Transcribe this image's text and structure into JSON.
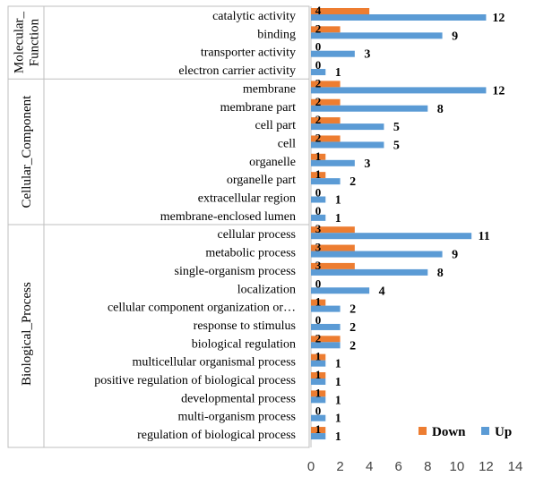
{
  "chart_data": {
    "type": "bar",
    "orientation": "horizontal",
    "xlim": [
      0,
      14
    ],
    "x_ticks": [
      "0",
      "2",
      "4",
      "6",
      "8",
      "10",
      "12",
      "14"
    ],
    "grid": false,
    "legend_position": "bottom-right",
    "series": [
      {
        "name": "Down",
        "color": "#ED7D31"
      },
      {
        "name": "Up",
        "color": "#5B9BD5"
      }
    ],
    "groups": [
      {
        "label_lines": [
          "Molecular_",
          "Function"
        ],
        "categories": [
          {
            "label": "catalytic activity",
            "down": 4,
            "up": 12
          },
          {
            "label": "binding",
            "down": 2,
            "up": 9
          },
          {
            "label": "transporter activity",
            "down": 0,
            "up": 3
          },
          {
            "label": "electron carrier activity",
            "down": 0,
            "up": 1
          }
        ]
      },
      {
        "label_lines": [
          "Cellular_Component"
        ],
        "categories": [
          {
            "label": "membrane",
            "down": 2,
            "up": 12
          },
          {
            "label": "membrane part",
            "down": 2,
            "up": 8
          },
          {
            "label": "cell part",
            "down": 2,
            "up": 5
          },
          {
            "label": "cell",
            "down": 2,
            "up": 5
          },
          {
            "label": "organelle",
            "down": 1,
            "up": 3
          },
          {
            "label": "organelle part",
            "down": 1,
            "up": 2
          },
          {
            "label": "extracellular region",
            "down": 0,
            "up": 1
          },
          {
            "label": "membrane-enclosed lumen",
            "down": 0,
            "up": 1
          }
        ]
      },
      {
        "label_lines": [
          "Biological_Process"
        ],
        "categories": [
          {
            "label": "cellular process",
            "down": 3,
            "up": 11
          },
          {
            "label": "metabolic process",
            "down": 3,
            "up": 9
          },
          {
            "label": "single-organism process",
            "down": 3,
            "up": 8
          },
          {
            "label": "localization",
            "down": 0,
            "up": 4
          },
          {
            "label": "cellular component organization or…",
            "down": 1,
            "up": 2
          },
          {
            "label": "response to stimulus",
            "down": 0,
            "up": 2
          },
          {
            "label": "biological regulation",
            "down": 2,
            "up": 2
          },
          {
            "label": "multicellular organismal process",
            "down": 1,
            "up": 1
          },
          {
            "label": "positive regulation of biological process",
            "down": 1,
            "up": 1
          },
          {
            "label": "developmental process",
            "down": 1,
            "up": 1
          },
          {
            "label": "multi-organism process",
            "down": 0,
            "up": 1
          },
          {
            "label": "regulation of biological process",
            "down": 1,
            "up": 1
          }
        ]
      }
    ]
  }
}
